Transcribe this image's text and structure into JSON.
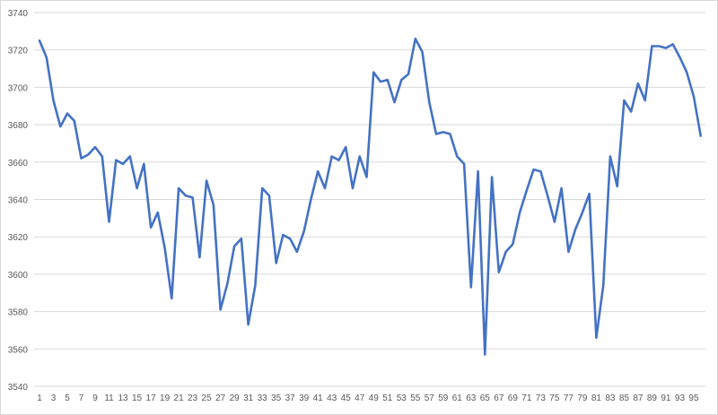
{
  "chart_data": {
    "type": "line",
    "title": "",
    "xlabel": "",
    "ylabel": "",
    "ylim": [
      3540,
      3740
    ],
    "yticks": [
      3540,
      3560,
      3580,
      3600,
      3620,
      3640,
      3660,
      3680,
      3700,
      3720,
      3740
    ],
    "x_tick_labels": [
      "1",
      "3",
      "5",
      "7",
      "9",
      "11",
      "13",
      "15",
      "17",
      "19",
      "21",
      "23",
      "25",
      "27",
      "29",
      "31",
      "33",
      "35",
      "37",
      "39",
      "41",
      "43",
      "45",
      "47",
      "49",
      "51",
      "53",
      "55",
      "57",
      "59",
      "61",
      "63",
      "65",
      "67",
      "69",
      "71",
      "73",
      "75",
      "77",
      "79",
      "81",
      "83",
      "85",
      "87",
      "89",
      "91",
      "93",
      "95"
    ],
    "grid": "horizontal",
    "legend": "none",
    "line_color": "#4472c4",
    "x": [
      1,
      2,
      3,
      4,
      5,
      6,
      7,
      8,
      9,
      10,
      11,
      12,
      13,
      14,
      15,
      16,
      17,
      18,
      19,
      20,
      21,
      22,
      23,
      24,
      25,
      26,
      27,
      28,
      29,
      30,
      31,
      32,
      33,
      34,
      35,
      36,
      37,
      38,
      39,
      40,
      41,
      42,
      43,
      44,
      45,
      46,
      47,
      48,
      49,
      50,
      51,
      52,
      53,
      54,
      55,
      56,
      57,
      58,
      59,
      60,
      61,
      62,
      63,
      64,
      65,
      66,
      67,
      68,
      69,
      70,
      71,
      72,
      73,
      74,
      75,
      76,
      77,
      78,
      79,
      80,
      81,
      82,
      83,
      84,
      85,
      86,
      87,
      88,
      89,
      90,
      91,
      92,
      93,
      94,
      95,
      96
    ],
    "values": [
      3725,
      3716,
      3693,
      3679,
      3686,
      3682,
      3662,
      3664,
      3668,
      3663,
      3628,
      3661,
      3659,
      3663,
      3646,
      3659,
      3625,
      3633,
      3614,
      3587,
      3646,
      3642,
      3641,
      3609,
      3650,
      3637,
      3581,
      3595,
      3615,
      3619,
      3573,
      3594,
      3646,
      3642,
      3606,
      3621,
      3619,
      3612,
      3623,
      3640,
      3655,
      3646,
      3663,
      3661,
      3668,
      3646,
      3663,
      3652,
      3708,
      3703,
      3704,
      3692,
      3704,
      3707,
      3726,
      3719,
      3692,
      3675,
      3676,
      3675,
      3663,
      3659,
      3593,
      3655,
      3557,
      3652,
      3601,
      3612,
      3616,
      3633,
      3645,
      3656,
      3655,
      3642,
      3628,
      3646,
      3612,
      3624,
      3633,
      3643,
      3566,
      3594,
      3663,
      3647,
      3693,
      3687,
      3702,
      3693,
      3722,
      3722,
      3721,
      3723,
      3716,
      3708,
      3695,
      3674
    ]
  }
}
